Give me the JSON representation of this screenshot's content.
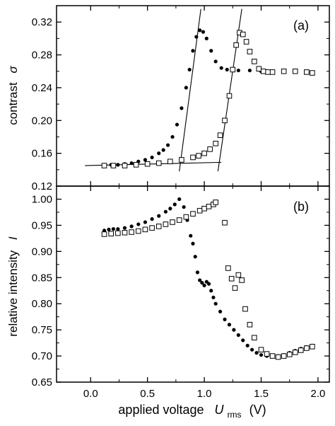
{
  "chart_data": [
    {
      "type": "scatter",
      "panel_label": "(a)",
      "ylabel": "contrast",
      "ylabel_symbol": "σ",
      "xlim": [
        -0.3,
        2.1
      ],
      "ylim": [
        0.12,
        0.34
      ],
      "x_ticks": [
        "0.0",
        "0.5",
        "1.0",
        "1.5",
        "2.0"
      ],
      "y_ticks": [
        "0.12",
        "0.16",
        "0.20",
        "0.24",
        "0.28",
        "0.32"
      ],
      "y_tick_values": [
        0.12,
        0.16,
        0.2,
        0.24,
        0.28,
        0.32
      ],
      "grid": false,
      "series": [
        {
          "marker": "filled-circle",
          "x": [
            0.12,
            0.18,
            0.24,
            0.3,
            0.36,
            0.42,
            0.48,
            0.54,
            0.6,
            0.64,
            0.68,
            0.72,
            0.76,
            0.8,
            0.84,
            0.87,
            0.9,
            0.93,
            0.96,
            0.99,
            1.02,
            1.06,
            1.1,
            1.15,
            1.2,
            1.3,
            1.4,
            1.5,
            1.6,
            1.7,
            1.8,
            1.9,
            1.95
          ],
          "y": [
            0.146,
            0.146,
            0.146,
            0.147,
            0.148,
            0.15,
            0.152,
            0.155,
            0.16,
            0.164,
            0.17,
            0.18,
            0.195,
            0.215,
            0.24,
            0.262,
            0.285,
            0.302,
            0.31,
            0.308,
            0.3,
            0.285,
            0.272,
            0.264,
            0.262,
            0.261,
            0.261,
            0.26,
            0.26,
            0.26,
            0.259,
            0.258,
            0.257
          ]
        },
        {
          "marker": "open-square",
          "x": [
            0.12,
            0.2,
            0.3,
            0.4,
            0.5,
            0.6,
            0.7,
            0.8,
            0.9,
            0.95,
            1.0,
            1.05,
            1.1,
            1.14,
            1.18,
            1.22,
            1.25,
            1.28,
            1.31,
            1.34,
            1.37,
            1.4,
            1.44,
            1.48,
            1.52,
            1.56,
            1.6,
            1.7,
            1.8,
            1.9,
            1.95
          ],
          "y": [
            0.145,
            0.145,
            0.145,
            0.146,
            0.147,
            0.148,
            0.15,
            0.152,
            0.155,
            0.157,
            0.16,
            0.165,
            0.172,
            0.182,
            0.2,
            0.23,
            0.262,
            0.292,
            0.307,
            0.305,
            0.296,
            0.284,
            0.272,
            0.263,
            0.26,
            0.259,
            0.259,
            0.26,
            0.26,
            0.259,
            0.258
          ]
        }
      ],
      "lines": [
        {
          "style": "solid",
          "x": [
            -0.05,
            1.15
          ],
          "y": [
            0.145,
            0.149
          ]
        },
        {
          "style": "solid",
          "x": [
            0.78,
            0.97
          ],
          "y": [
            0.138,
            0.336
          ]
        },
        {
          "style": "solid",
          "x": [
            1.12,
            1.33
          ],
          "y": [
            0.138,
            0.336
          ]
        }
      ]
    },
    {
      "type": "scatter",
      "panel_label": "(b)",
      "ylabel": "relative intensity",
      "ylabel_symbol": "I",
      "xlabel": "applied voltage",
      "xlabel_symbol": "U",
      "xlabel_subscript": "rms",
      "xlabel_unit": "(V)",
      "xlim": [
        -0.3,
        2.1
      ],
      "ylim": [
        0.65,
        1.025
      ],
      "x_ticks": [
        "0.0",
        "0.5",
        "1.0",
        "1.5",
        "2.0"
      ],
      "x_tick_values": [
        0.0,
        0.5,
        1.0,
        1.5,
        2.0
      ],
      "y_ticks": [
        "0.65",
        "0.70",
        "0.75",
        "0.80",
        "0.85",
        "0.90",
        "0.95",
        "1.00"
      ],
      "y_tick_values": [
        0.65,
        0.7,
        0.75,
        0.8,
        0.85,
        0.9,
        0.95,
        1.0
      ],
      "grid": false,
      "series": [
        {
          "marker": "filled-circle",
          "x": [
            0.12,
            0.16,
            0.2,
            0.24,
            0.3,
            0.36,
            0.42,
            0.48,
            0.54,
            0.6,
            0.66,
            0.7,
            0.74,
            0.78,
            0.82,
            0.85,
            0.88,
            0.9,
            0.92,
            0.94,
            0.96,
            0.98,
            1.0,
            1.02,
            1.04,
            1.06,
            1.08,
            1.1,
            1.14,
            1.18,
            1.22,
            1.26,
            1.3,
            1.34,
            1.38,
            1.42,
            1.46,
            1.5,
            1.55,
            1.6,
            1.65,
            1.7,
            1.75,
            1.8,
            1.85,
            1.9,
            1.95
          ],
          "y": [
            0.94,
            0.942,
            0.943,
            0.943,
            0.945,
            0.948,
            0.952,
            0.956,
            0.962,
            0.968,
            0.976,
            0.982,
            0.99,
            1.0,
            0.985,
            0.96,
            0.93,
            0.915,
            0.89,
            0.86,
            0.845,
            0.84,
            0.835,
            0.842,
            0.838,
            0.825,
            0.812,
            0.8,
            0.785,
            0.77,
            0.76,
            0.75,
            0.74,
            0.73,
            0.72,
            0.712,
            0.706,
            0.702,
            0.7,
            0.7,
            0.7,
            0.702,
            0.706,
            0.71,
            0.714,
            0.717,
            0.72
          ]
        },
        {
          "marker": "open-square",
          "x": [
            0.12,
            0.18,
            0.24,
            0.3,
            0.36,
            0.42,
            0.48,
            0.54,
            0.6,
            0.66,
            0.72,
            0.78,
            0.84,
            0.9,
            0.96,
            1.0,
            1.04,
            1.08,
            1.1,
            1.18,
            1.21,
            1.24,
            1.27,
            1.3,
            1.33,
            1.36,
            1.4,
            1.44,
            1.5,
            1.55,
            1.6,
            1.65,
            1.7,
            1.75,
            1.8,
            1.85,
            1.9,
            1.95
          ],
          "y": [
            0.933,
            0.934,
            0.935,
            0.936,
            0.937,
            0.939,
            0.942,
            0.945,
            0.948,
            0.952,
            0.956,
            0.96,
            0.966,
            0.972,
            0.978,
            0.982,
            0.986,
            0.99,
            0.994,
            0.955,
            0.868,
            0.848,
            0.83,
            0.855,
            0.845,
            0.79,
            0.76,
            0.735,
            0.712,
            0.704,
            0.7,
            0.698,
            0.7,
            0.703,
            0.707,
            0.711,
            0.715,
            0.718
          ]
        }
      ],
      "lines": []
    }
  ]
}
